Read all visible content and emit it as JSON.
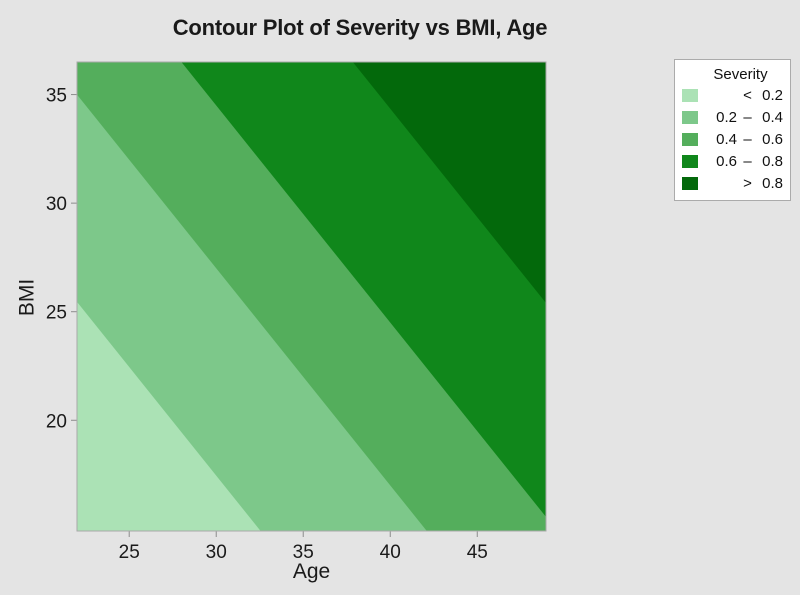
{
  "figure": {
    "background_color": "#e4e4e4"
  },
  "chart_data": {
    "type": "heatmap",
    "subtype": "filled-contour",
    "title": "Contour Plot of Severity vs BMI, Age",
    "xlabel": "Age",
    "ylabel": "BMI",
    "xlim": [
      22,
      48.95
    ],
    "ylim": [
      14.9,
      36.5
    ],
    "x_ticks": [
      25,
      30,
      35,
      40,
      45
    ],
    "y_ticks": [
      20,
      25,
      30,
      35
    ],
    "grid": false,
    "z_variable": "Severity",
    "contour_model": "filled bands; boundaries are straight lines of slope -1 where Age + BMI = constant; severity increases toward upper-right",
    "band_boundaries_age_plus_bmi": [
      47.45,
      57.0,
      64.5,
      74.35
    ],
    "bands": [
      {
        "label": "< 0.2",
        "lo": "",
        "op": "<",
        "hi": "0.2",
        "color": "#ABE2B5"
      },
      {
        "label": "0.2 – 0.4",
        "lo": "0.2",
        "op": "–",
        "hi": "0.4",
        "color": "#7DC88A"
      },
      {
        "label": "0.4 – 0.6",
        "lo": "0.4",
        "op": "–",
        "hi": "0.6",
        "color": "#54AE5C"
      },
      {
        "label": "0.6 – 0.8",
        "lo": "0.6",
        "op": "–",
        "hi": "0.8",
        "color": "#10871B"
      },
      {
        "label": "> 0.8",
        "lo": "",
        "op": ">",
        "hi": "0.8",
        "color": "#03690B"
      }
    ],
    "legend": {
      "title": "Severity",
      "position": "outside-top-right"
    },
    "frame_color": "#a9a9a9",
    "tick_color": "#8c8c8c",
    "text_color": "#1a1a1a"
  }
}
